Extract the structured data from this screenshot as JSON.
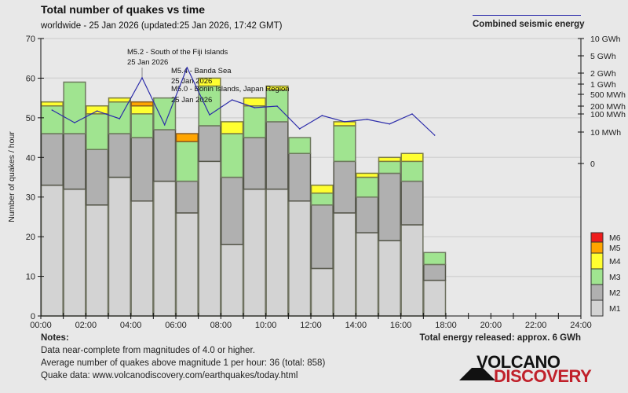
{
  "header": {
    "title": "Total number of quakes vs time",
    "subtitle": "worldwide - 25 Jan 2026 (updated:25 Jan 2026, 17:42 GMT)",
    "energy_legend": "Combined seismic energy"
  },
  "chart_data": {
    "type": "bar",
    "stacked": true,
    "title": "Total number of quakes vs time",
    "ylabel": "Number of quakes / hour",
    "ylim": [
      0,
      70
    ],
    "yticks": [
      "0",
      "10",
      "20",
      "30",
      "40",
      "50",
      "60",
      "70"
    ],
    "xticks": [
      "00:00",
      "02:00",
      "04:00",
      "06:00",
      "08:00",
      "10:00",
      "12:00",
      "14:00",
      "16:00",
      "18:00",
      "20:00",
      "22:00",
      "24:00"
    ],
    "xlim_hours": [
      0,
      24
    ],
    "hours": [
      0,
      1,
      2,
      3,
      4,
      5,
      6,
      7,
      8,
      9,
      10,
      11,
      12,
      13,
      14,
      15,
      16,
      17
    ],
    "series": [
      {
        "name": "M1",
        "color": "#d3d3d3",
        "values": [
          33,
          32,
          28,
          35,
          29,
          34,
          26,
          39,
          18,
          32,
          32,
          29,
          12,
          26,
          21,
          19,
          23,
          9
        ]
      },
      {
        "name": "M2",
        "color": "#b0b0b0",
        "values": [
          13,
          14,
          14,
          11,
          16,
          13,
          8,
          9,
          17,
          13,
          17,
          12,
          16,
          13,
          9,
          17,
          11,
          4
        ]
      },
      {
        "name": "M3",
        "color": "#a0e490",
        "values": [
          7,
          13,
          9,
          8,
          6,
          8,
          10,
          10,
          11,
          8,
          8,
          4,
          3,
          9,
          5,
          3,
          5,
          3
        ]
      },
      {
        "name": "M4",
        "color": "#ffff30",
        "values": [
          1,
          0,
          2,
          1,
          2,
          0,
          0,
          2,
          3,
          2,
          1,
          0,
          2,
          1,
          1,
          1,
          2,
          0
        ]
      },
      {
        "name": "M5",
        "color": "#ffa500",
        "values": [
          0,
          0,
          0,
          0,
          1,
          0,
          2,
          0,
          0,
          0,
          0,
          0,
          0,
          0,
          0,
          0,
          0,
          0
        ]
      },
      {
        "name": "M6",
        "color": "#ee1c1c",
        "values": [
          0,
          0,
          0,
          0,
          0,
          0,
          0,
          0,
          0,
          0,
          0,
          0,
          0,
          0,
          0,
          0,
          0,
          0
        ]
      }
    ],
    "legend": [
      "M6",
      "M5",
      "M4",
      "M3",
      "M2",
      "M1"
    ],
    "legend_position": "right",
    "energy": {
      "name": "Combined seismic energy",
      "color": "#2c2caa",
      "unit": "MWh",
      "values": [
        141,
        33,
        130,
        55,
        1485,
        25,
        2680,
        90,
        326,
        174,
        200,
        15,
        82,
        37,
        50,
        28,
        100,
        9
      ],
      "axis_ticks": [
        {
          "label": "10 GWh",
          "value": 10000
        },
        {
          "label": "5 GWh",
          "value": 5000
        },
        {
          "label": "2 GWh",
          "value": 2000
        },
        {
          "label": "1 GWh",
          "value": 1000
        },
        {
          "label": "500 MWh",
          "value": 500
        },
        {
          "label": "200 MWh",
          "value": 200
        },
        {
          "label": "100 MWh",
          "value": 100
        },
        {
          "label": "10 MWh",
          "value": 10
        },
        {
          "label": "0",
          "value": 0
        }
      ]
    },
    "annotations": [
      {
        "line1": "M5.2 - South of the Fiji Islands",
        "line2": "25 Jan 2026",
        "hour": 4
      },
      {
        "line1": "M5.4 - Banda Sea",
        "line2": "25 Jan 2026",
        "hour": 6
      },
      {
        "line1": "M5.0 - Bonin Islands, Japan Region",
        "line2": "25 Jan 2026",
        "hour": 6
      }
    ]
  },
  "notes": {
    "title": "Notes:",
    "lines": [
      "Data near-complete from magnitudes of 4.0 or higher.",
      "Average number of quakes above magnitude 1 per hour: 36 (total: 858)",
      "Quake data: www.volcanodiscovery.com/earthquakes/today.html"
    ],
    "total_energy": "Total energy released: approx. 6 GWh"
  },
  "logo": {
    "top": "VOLCANO",
    "bottom": "DISCOVERY"
  }
}
